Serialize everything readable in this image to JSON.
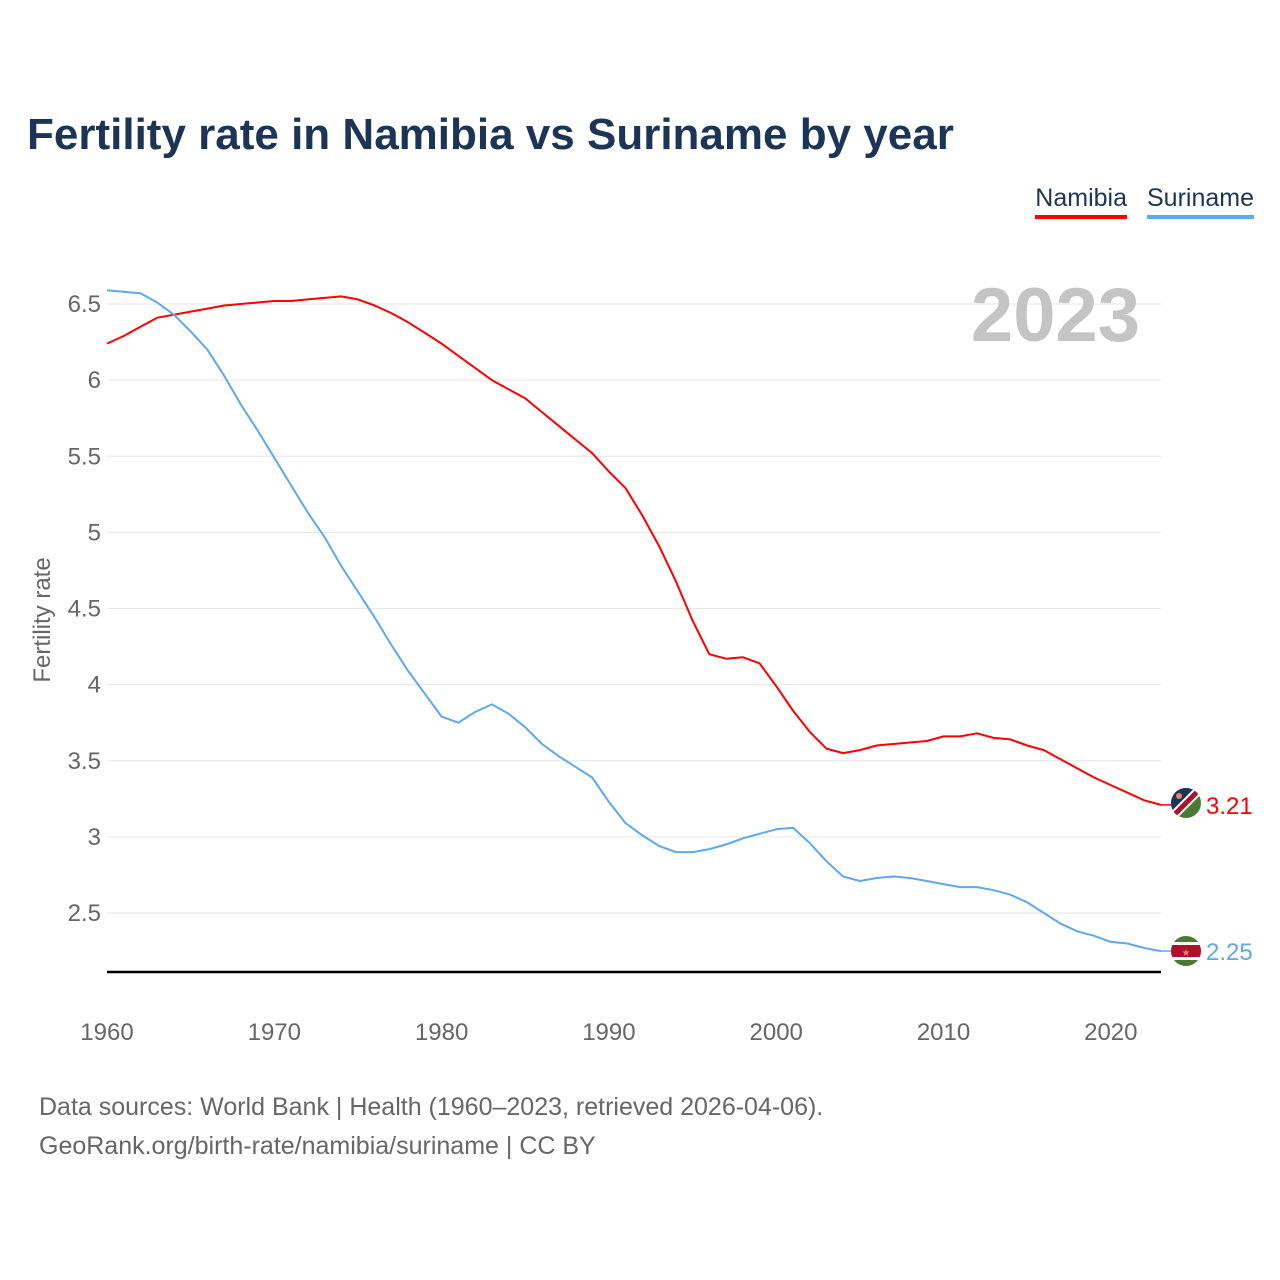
{
  "title": "Fertility rate in Namibia vs Suriname by year",
  "legend": [
    "Namibia",
    "Suriname"
  ],
  "source_line1": "Data sources: World Bank | Health (1960–2023, retrieved 2026-04-06).",
  "source_line2": "GeoRank.org/birth-rate/namibia/suriname | CC BY",
  "chart_data": {
    "type": "line",
    "title": "Fertility rate in Namibia vs Suriname by year",
    "xlabel": "",
    "ylabel": "Fertility rate",
    "year_label": "2023",
    "xlim": [
      1960,
      2023
    ],
    "ylim": [
      2.11,
      6.7
    ],
    "xticks": [
      1960,
      1970,
      1980,
      1990,
      2000,
      2010,
      2020
    ],
    "yticks": [
      2.5,
      3,
      3.5,
      4,
      4.5,
      5,
      5.5,
      6,
      6.5
    ],
    "ytick_labels": [
      "2.5",
      "3",
      "3.5",
      "4",
      "4.5",
      "5",
      "5.5",
      "6",
      "6.5"
    ],
    "grid": true,
    "legend_position": "top-right",
    "x_start": 1960,
    "series": [
      {
        "name": "Namibia",
        "color": "#ff0000",
        "end_label": "3.21",
        "values": [
          6.24,
          6.29,
          6.35,
          6.41,
          6.43,
          6.45,
          6.47,
          6.49,
          6.5,
          6.51,
          6.52,
          6.52,
          6.53,
          6.54,
          6.55,
          6.53,
          6.49,
          6.44,
          6.38,
          6.31,
          6.24,
          6.16,
          6.08,
          6.0,
          5.94,
          5.88,
          5.79,
          5.7,
          5.61,
          5.52,
          5.4,
          5.29,
          5.11,
          4.91,
          4.68,
          4.42,
          4.2,
          4.17,
          4.18,
          4.14,
          3.99,
          3.83,
          3.69,
          3.58,
          3.55,
          3.57,
          3.6,
          3.61,
          3.62,
          3.63,
          3.66,
          3.66,
          3.68,
          3.65,
          3.64,
          3.6,
          3.57,
          3.51,
          3.45,
          3.39,
          3.34,
          3.29,
          3.24,
          3.21
        ]
      },
      {
        "name": "Suriname",
        "color": "#5ea8ee",
        "end_label": "2.25",
        "values": [
          6.59,
          6.58,
          6.57,
          6.51,
          6.43,
          6.32,
          6.2,
          6.03,
          5.84,
          5.67,
          5.49,
          5.31,
          5.13,
          4.97,
          4.78,
          4.61,
          4.44,
          4.26,
          4.09,
          3.94,
          3.79,
          3.75,
          3.82,
          3.87,
          3.81,
          3.72,
          3.61,
          3.53,
          3.46,
          3.39,
          3.23,
          3.09,
          3.01,
          2.94,
          2.9,
          2.9,
          2.92,
          2.95,
          2.99,
          3.02,
          3.05,
          3.06,
          2.96,
          2.84,
          2.74,
          2.71,
          2.73,
          2.74,
          2.73,
          2.71,
          2.69,
          2.67,
          2.67,
          2.65,
          2.62,
          2.57,
          2.5,
          2.43,
          2.38,
          2.35,
          2.31,
          2.3,
          2.27,
          2.25
        ]
      }
    ]
  }
}
